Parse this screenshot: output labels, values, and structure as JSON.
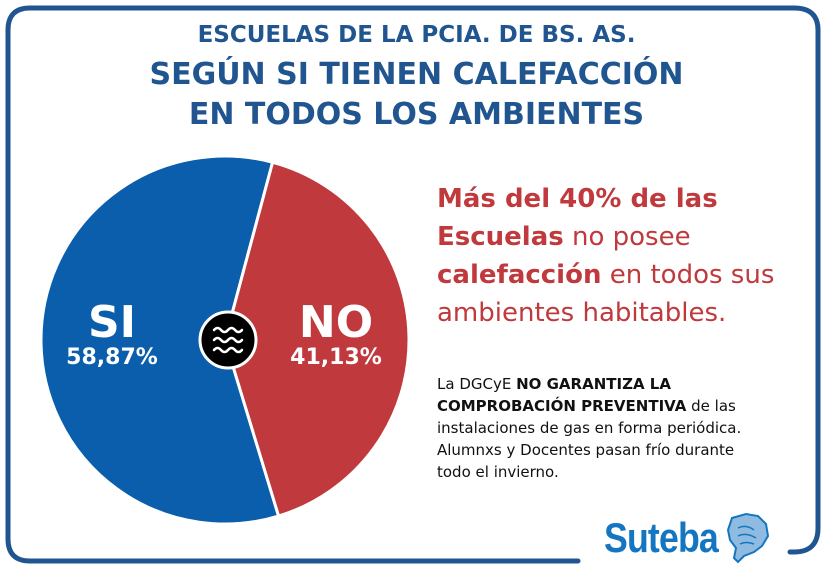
{
  "header": {
    "line1": "ESCUELAS DE LA PCIA. DE BS. AS.",
    "line2": "SEGÚN SI TIENEN CALEFACCIÓN",
    "line3": "EN TODOS LOS AMBIENTES"
  },
  "chart_data": {
    "type": "pie",
    "title": "ESCUELAS DE LA PCIA. DE BS. AS. SEGÚN SI TIENEN CALEFACCIÓN EN TODOS LOS AMBIENTES",
    "slices": [
      {
        "label": "SI",
        "value": 58.87,
        "display": "58,87%",
        "color": "#0a5eac"
      },
      {
        "label": "NO",
        "value": 41.13,
        "display": "41,13%",
        "color": "#c0393c"
      }
    ],
    "center_icon": "heat-waves-icon"
  },
  "highlight": {
    "p1_bold": "Más del 40% de las Escuelas",
    "p2": " no posee ",
    "p3_bold": "calefacción",
    "p4": " en todos sus ambientes habitables."
  },
  "note": {
    "n1": "La DGCyE ",
    "n2_bold": "NO GARANTIZA LA COMPROBACIÓN PREVENTIVA",
    "n3": " de las instalaciones de gas en forma periódica. Alumnxs y Docentes pasan frío durante todo el invierno."
  },
  "logo": {
    "text": "Suteba"
  },
  "colors": {
    "frame": "#20558f",
    "si": "#0a5eac",
    "no": "#c0393c",
    "logo": "#1476c0"
  }
}
